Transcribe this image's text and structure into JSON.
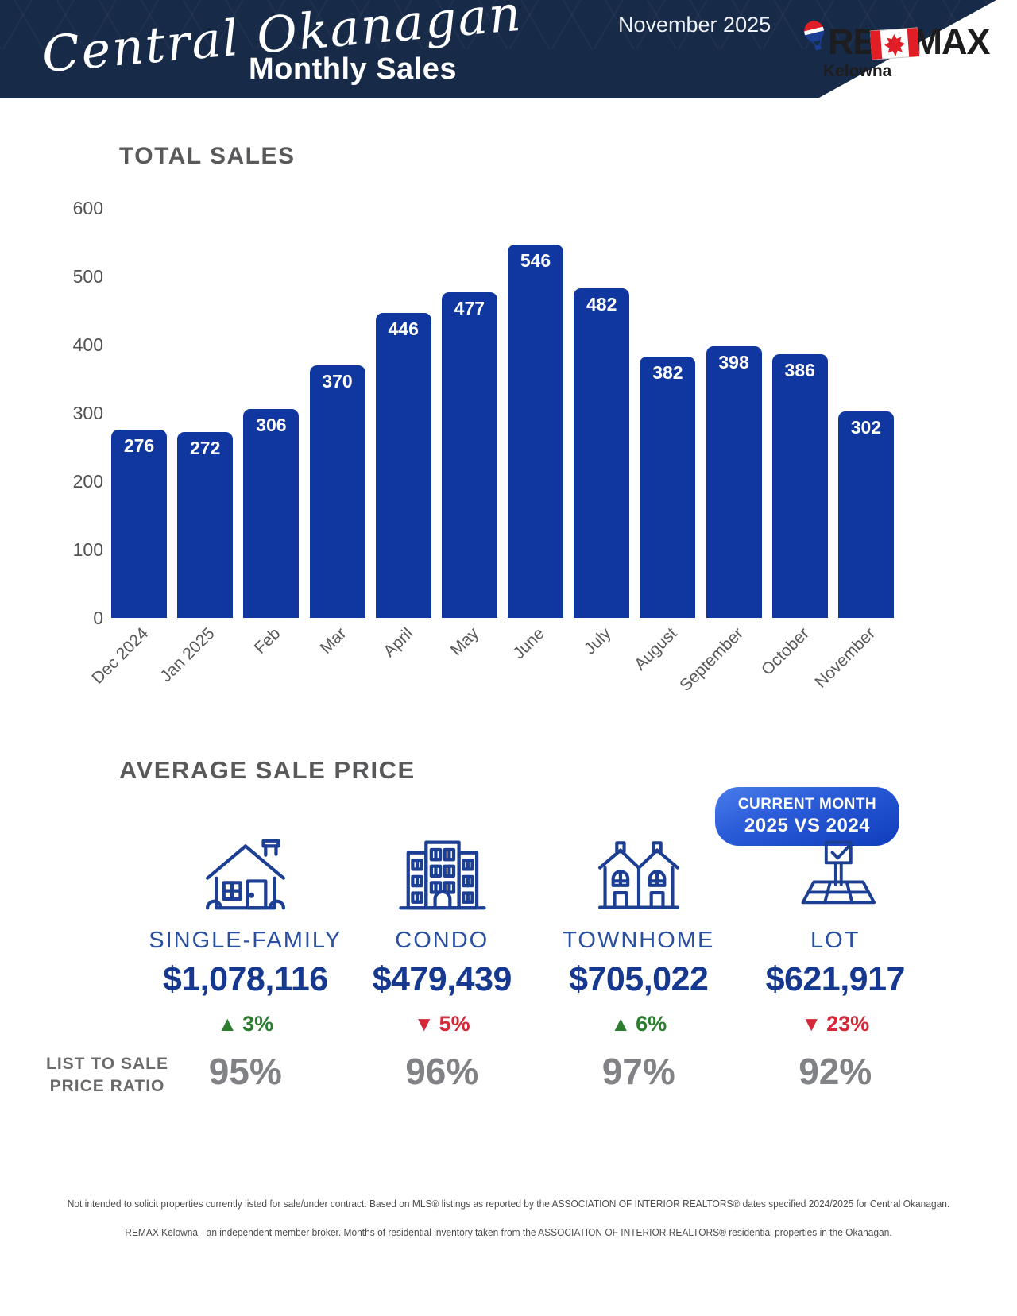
{
  "header": {
    "region": "Central Okanagan",
    "title": "Monthly Sales",
    "date": "November 2025",
    "logo": {
      "brand_left": "RE",
      "brand_right": "MAX",
      "office": "Kelowna"
    },
    "colors": {
      "banner": "#172a47",
      "brand_red": "#e11d26"
    }
  },
  "chart_data": {
    "type": "bar",
    "title": "TOTAL SALES",
    "categories": [
      "Dec 2024",
      "Jan 2025",
      "Feb",
      "Mar",
      "April",
      "May",
      "June",
      "July",
      "August",
      "September",
      "October",
      "November"
    ],
    "values": [
      276,
      272,
      306,
      370,
      446,
      477,
      546,
      482,
      382,
      398,
      386,
      302
    ],
    "xlabel": "",
    "ylabel": "",
    "ylim": [
      0,
      600
    ],
    "yticks": [
      0,
      100,
      200,
      300,
      400,
      500,
      600
    ],
    "grid": false,
    "legend": "none",
    "bar_color": "#10379f",
    "value_label_position": "inside-top-white"
  },
  "average_sale_price": {
    "title": "AVERAGE SALE PRICE",
    "badge": {
      "line1": "CURRENT MONTH",
      "line2": "2025 VS 2024"
    },
    "categories": [
      {
        "name": "SINGLE-FAMILY",
        "icon": "house-icon",
        "price": "$1,078,116",
        "change": "3%",
        "direction": "up",
        "list_to_sale_ratio": "95%"
      },
      {
        "name": "CONDO",
        "icon": "condo-icon",
        "price": "$479,439",
        "change": "5%",
        "direction": "down",
        "list_to_sale_ratio": "96%"
      },
      {
        "name": "TOWNHOME",
        "icon": "townhome-icon",
        "price": "$705,022",
        "change": "6%",
        "direction": "up",
        "list_to_sale_ratio": "97%"
      },
      {
        "name": "LOT",
        "icon": "lot-icon",
        "price": "$621,917",
        "change": "23%",
        "direction": "down",
        "list_to_sale_ratio": "92%"
      }
    ],
    "colors": {
      "up": "#2a7e2e",
      "down": "#d62839",
      "price": "#16388f",
      "label": "#2a4f9e"
    }
  },
  "list_to_sale": {
    "label_line1": "LIST TO SALE",
    "label_line2": "PRICE RATIO"
  },
  "footer": {
    "line1": "Not intended to solicit properties currently listed for sale/under contract. Based on MLS® listings as reported by the ASSOCIATION OF INTERIOR REALTORS® dates specified 2024/2025 for Central Okanagan.",
    "line2": "REMAX Kelowna - an independent member broker. Months of residential inventory taken from the ASSOCIATION OF INTERIOR REALTORS® residential properties in the Okanagan."
  }
}
